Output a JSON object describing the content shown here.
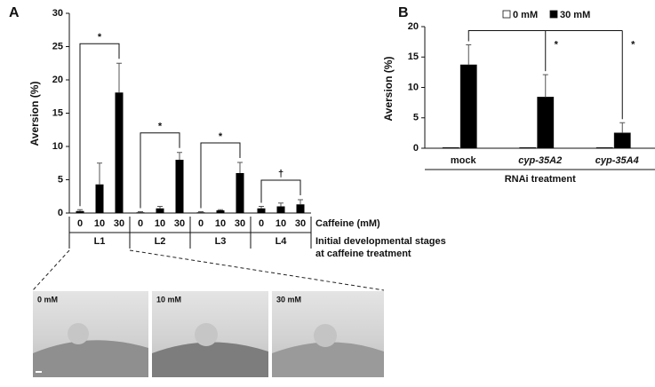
{
  "chart_data": [
    {
      "type": "bar",
      "panel": "A",
      "ylabel": "Aversion (%)",
      "categories": [
        "0",
        "10",
        "30",
        "0",
        "10",
        "30",
        "0",
        "10",
        "30",
        "0",
        "10",
        "30"
      ],
      "values": [
        0.3,
        4.3,
        18.1,
        0.1,
        0.7,
        8.0,
        0.1,
        0.4,
        6.0,
        0.7,
        1.0,
        1.3
      ],
      "errors": [
        0.2,
        3.2,
        4.4,
        0.1,
        0.3,
        1.1,
        0.1,
        0.1,
        1.6,
        0.3,
        0.5,
        0.7
      ],
      "groups": [
        "L1",
        "L2",
        "L3",
        "L4"
      ],
      "significance": [
        "*",
        "*",
        "*",
        "†"
      ],
      "xlabel": "Caffeine (mM)",
      "group_label": [
        "Initial developmental stages",
        "at caffeine treatment"
      ],
      "color": "#000000",
      "ylim": [
        0,
        30
      ],
      "yticks": [
        0,
        5,
        10,
        15,
        20,
        25,
        30
      ]
    },
    {
      "type": "grouped_bar",
      "panel": "B",
      "ylabel": "Aversion (%)",
      "categories": [
        "mock",
        "cyp-35A2",
        "cyp-35A4"
      ],
      "series": [
        {
          "name": "0 mM",
          "color": "#ffffff",
          "values": [
            0.1,
            0.1,
            0.1
          ]
        },
        {
          "name": "30 mM",
          "color": "#000000",
          "values": [
            13.7,
            8.4,
            2.5
          ],
          "errors": [
            3.3,
            3.7,
            1.7
          ]
        }
      ],
      "significance": [
        "*",
        "*"
      ],
      "xlabel": "RNAi treatment",
      "legend": "top-right",
      "ylim": [
        0,
        20
      ],
      "yticks": [
        0,
        5,
        10,
        15,
        20
      ]
    }
  ],
  "photos": {
    "labels": [
      "0 mM",
      "10 mM",
      "30 mM"
    ]
  }
}
